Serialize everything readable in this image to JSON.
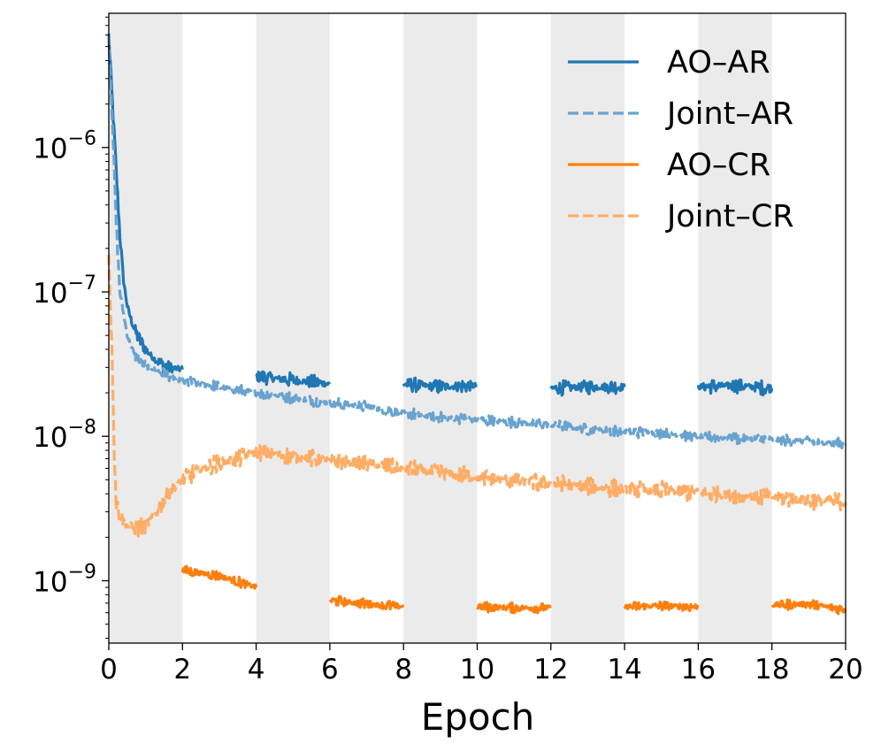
{
  "chart_data": {
    "type": "line",
    "title": "",
    "xlabel": "Epoch",
    "ylabel": "",
    "xlim": [
      0,
      20
    ],
    "ylim": [
      3.7e-10,
      8.5e-06
    ],
    "yscale": "log",
    "x_ticks": [
      0,
      2,
      4,
      6,
      8,
      10,
      12,
      14,
      16,
      18,
      20
    ],
    "x_tick_labels": [
      "0",
      "2",
      "4",
      "6",
      "8",
      "10",
      "12",
      "14",
      "16",
      "18",
      "20"
    ],
    "y_ticks": [
      1e-09,
      1e-08,
      1e-07,
      1e-06
    ],
    "y_tick_labels": [
      {
        "base": "10",
        "exp": "−9"
      },
      {
        "base": "10",
        "exp": "−8"
      },
      {
        "base": "10",
        "exp": "−7"
      },
      {
        "base": "10",
        "exp": "−6"
      }
    ],
    "shaded_x_ranges": [
      [
        0,
        2
      ],
      [
        4,
        6
      ],
      [
        8,
        10
      ],
      [
        12,
        14
      ],
      [
        16,
        18
      ]
    ],
    "legend_position": "top-right",
    "series": [
      {
        "name": "AO–AR",
        "color": "#1f77b4",
        "dash": "solid",
        "segments": [
          {
            "x": [
              0.0,
              0.1,
              0.2,
              0.3,
              0.4,
              0.5,
              0.6,
              0.7,
              0.8,
              1.0,
              1.2,
              1.4,
              1.6,
              1.8,
              2.0
            ],
            "y": [
              6e-06,
              2e-06,
              7e-07,
              2.5e-07,
              1.2e-07,
              8e-08,
              6.5e-08,
              5.5e-08,
              4.8e-08,
              4e-08,
              3.5e-08,
              3.2e-08,
              3e-08,
              2.95e-08,
              2.9e-08
            ]
          },
          {
            "x": [
              4.0,
              5.0,
              6.0
            ],
            "y": [
              2.6e-08,
              2.45e-08,
              2.3e-08
            ]
          },
          {
            "x": [
              8.0,
              9.0,
              10.0
            ],
            "y": [
              2.3e-08,
              2.2e-08,
              2.25e-08
            ]
          },
          {
            "x": [
              12.0,
              13.0,
              14.0
            ],
            "y": [
              2.15e-08,
              2.2e-08,
              2.2e-08
            ]
          },
          {
            "x": [
              16.0,
              17.0,
              18.0
            ],
            "y": [
              2.2e-08,
              2.25e-08,
              2.15e-08
            ]
          }
        ]
      },
      {
        "name": "Joint–AR",
        "color": "#6aa3cf",
        "dash": "dashed",
        "segments": [
          {
            "x": [
              0.0,
              0.1,
              0.2,
              0.3,
              0.5,
              0.7,
              1.0,
              1.5,
              2.0,
              3.0,
              4.0,
              5.0,
              6.0,
              7.0,
              8.0,
              9.0,
              10.0,
              11.0,
              12.0,
              13.0,
              14.0,
              15.0,
              16.0,
              17.0,
              18.0,
              19.0,
              20.0
            ],
            "y": [
              6e-06,
              1.5e-06,
              3e-07,
              1e-07,
              5e-08,
              3.6e-08,
              3.1e-08,
              2.7e-08,
              2.4e-08,
              2.2e-08,
              2e-08,
              1.85e-08,
              1.7e-08,
              1.6e-08,
              1.45e-08,
              1.35e-08,
              1.3e-08,
              1.25e-08,
              1.2e-08,
              1.12e-08,
              1.08e-08,
              1.05e-08,
              1e-08,
              9.7e-09,
              9.5e-09,
              9.2e-09,
              8.8e-09
            ]
          }
        ]
      },
      {
        "name": "AO–CR",
        "color": "#ff7f0e",
        "dash": "solid",
        "segments": [
          {
            "x": [
              2.0,
              3.0,
              4.0
            ],
            "y": [
              1.18e-09,
              1.08e-09,
              9e-10
            ]
          },
          {
            "x": [
              6.0,
              7.0,
              8.0
            ],
            "y": [
              7.3e-10,
              6.9e-10,
              6.6e-10
            ]
          },
          {
            "x": [
              10.0,
              11.0,
              12.0
            ],
            "y": [
              6.6e-10,
              6.5e-10,
              6.5e-10
            ]
          },
          {
            "x": [
              14.0,
              15.0,
              16.0
            ],
            "y": [
              6.6e-10,
              6.7e-10,
              6.6e-10
            ]
          },
          {
            "x": [
              18.0,
              19.0,
              20.0
            ],
            "y": [
              6.8e-10,
              6.9e-10,
              6.3e-10
            ]
          }
        ]
      },
      {
        "name": "Joint–CR",
        "color": "#ffad66",
        "dash": "dashed",
        "segments": [
          {
            "x": [
              0.0,
              0.1,
              0.15,
              0.2,
              0.3,
              0.5,
              0.8,
              1.0,
              1.3,
              1.6,
              2.0,
              2.5,
              3.0,
              3.5,
              4.0,
              4.5,
              5.0,
              6.0,
              7.0,
              8.0,
              9.0,
              10.0,
              11.0,
              12.0,
              13.0,
              14.0,
              15.0,
              16.0,
              17.0,
              18.0,
              19.0,
              20.0
            ],
            "y": [
              1.8e-07,
              3e-08,
              8e-09,
              3.5e-09,
              2.8e-09,
              2.4e-09,
              2.3e-09,
              2.4e-09,
              3e-09,
              4e-09,
              5e-09,
              6e-09,
              6.5e-09,
              7e-09,
              7.8e-09,
              7.5e-09,
              7.2e-09,
              6.8e-09,
              6.5e-09,
              6e-09,
              5.6e-09,
              5.2e-09,
              4.9e-09,
              4.7e-09,
              4.5e-09,
              4.3e-09,
              4.2e-09,
              4.1e-09,
              3.9e-09,
              3.8e-09,
              3.6e-09,
              3.5e-09
            ]
          }
        ]
      }
    ]
  }
}
